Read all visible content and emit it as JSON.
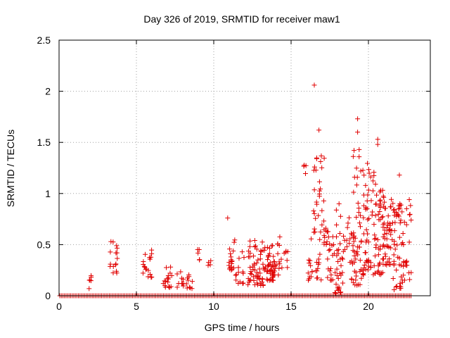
{
  "chart_data": {
    "type": "scatter",
    "title": "Day 326 of 2019, SRMTID for receiver maw1",
    "xlabel": "GPS time / hours",
    "ylabel": "SRMTID / TECUs",
    "xlim": [
      0,
      24
    ],
    "ylim": [
      0,
      2.5
    ],
    "xticks": [
      0,
      5,
      10,
      15,
      20
    ],
    "yticks": [
      0,
      0.5,
      1,
      1.5,
      2,
      2.5
    ],
    "xtick_labels": [
      "0",
      "5",
      "10",
      "15",
      "20"
    ],
    "ytick_labels": [
      "0",
      "0.5",
      "1",
      "1.5",
      "2",
      "2.5"
    ],
    "grid": true,
    "marker": "+",
    "series_color": "#e00000",
    "baseline": {
      "y": 0,
      "x_start": 0.05,
      "x_end": 22.8,
      "step": 0.1
    },
    "clusters": [
      {
        "x": [
          1.9,
          2.1
        ],
        "y": [
          0.05,
          0.22
        ],
        "n": 6
      },
      {
        "x": [
          3.3,
          3.8
        ],
        "y": [
          0.22,
          0.57
        ],
        "n": 16
      },
      {
        "x": [
          5.3,
          6.0
        ],
        "y": [
          0.18,
          0.45
        ],
        "n": 18
      },
      {
        "x": [
          6.6,
          7.3
        ],
        "y": [
          0.08,
          0.32
        ],
        "n": 18
      },
      {
        "x": [
          7.6,
          8.1
        ],
        "y": [
          0.08,
          0.24
        ],
        "n": 10
      },
      {
        "x": [
          8.2,
          8.7
        ],
        "y": [
          0.06,
          0.22
        ],
        "n": 10
      },
      {
        "x": [
          8.9,
          9.1
        ],
        "y": [
          0.35,
          0.61
        ],
        "n": 5
      },
      {
        "x": [
          9.6,
          9.9
        ],
        "y": [
          0.25,
          0.35
        ],
        "n": 4
      },
      {
        "x": [
          10.9,
          11.4
        ],
        "y": [
          0.25,
          0.55
        ],
        "n": 18
      },
      {
        "x": [
          11.4,
          12.0
        ],
        "y": [
          0.12,
          0.45
        ],
        "n": 14
      },
      {
        "x": [
          12.2,
          13.2
        ],
        "y": [
          0.1,
          0.55
        ],
        "n": 55
      },
      {
        "x": [
          13.2,
          14.0
        ],
        "y": [
          0.15,
          0.5
        ],
        "n": 45
      },
      {
        "x": [
          13.8,
          14.3
        ],
        "y": [
          0.2,
          0.7
        ],
        "n": 16
      },
      {
        "x": [
          14.3,
          14.8
        ],
        "y": [
          0.22,
          0.45
        ],
        "n": 8
      },
      {
        "x": [
          15.8,
          16.0
        ],
        "y": [
          1.18,
          1.3
        ],
        "n": 4
      },
      {
        "x": [
          16.1,
          16.4
        ],
        "y": [
          0.15,
          0.6
        ],
        "n": 12
      },
      {
        "x": [
          16.4,
          17.0
        ],
        "y": [
          0.15,
          1.45
        ],
        "n": 35
      },
      {
        "x": [
          16.9,
          17.3
        ],
        "y": [
          0.5,
          1.35
        ],
        "n": 14
      },
      {
        "x": [
          17.3,
          18.0
        ],
        "y": [
          0.15,
          0.7
        ],
        "n": 24
      },
      {
        "x": [
          17.8,
          18.5
        ],
        "y": [
          0.02,
          0.9
        ],
        "n": 34
      },
      {
        "x": [
          18.5,
          19.2
        ],
        "y": [
          0.15,
          0.8
        ],
        "n": 24
      },
      {
        "x": [
          19.0,
          19.7
        ],
        "y": [
          0.1,
          1.45
        ],
        "n": 44
      },
      {
        "x": [
          19.7,
          20.4
        ],
        "y": [
          0.25,
          1.3
        ],
        "n": 44
      },
      {
        "x": [
          20.3,
          21.0
        ],
        "y": [
          0.2,
          1.1
        ],
        "n": 48
      },
      {
        "x": [
          20.9,
          21.7
        ],
        "y": [
          0.3,
          0.95
        ],
        "n": 56
      },
      {
        "x": [
          21.6,
          22.3
        ],
        "y": [
          0.05,
          0.9
        ],
        "n": 42
      },
      {
        "x": [
          22.2,
          22.8
        ],
        "y": [
          0.15,
          0.95
        ],
        "n": 22
      }
    ],
    "points": [
      {
        "x": 16.5,
        "y": 2.06
      },
      {
        "x": 16.8,
        "y": 1.62
      },
      {
        "x": 19.3,
        "y": 1.73
      },
      {
        "x": 19.3,
        "y": 1.6
      },
      {
        "x": 20.6,
        "y": 1.53
      },
      {
        "x": 20.6,
        "y": 1.48
      },
      {
        "x": 22.0,
        "y": 1.18
      },
      {
        "x": 10.9,
        "y": 0.76
      },
      {
        "x": 19.4,
        "y": 1.43
      },
      {
        "x": 18.1,
        "y": 0.9
      }
    ]
  }
}
